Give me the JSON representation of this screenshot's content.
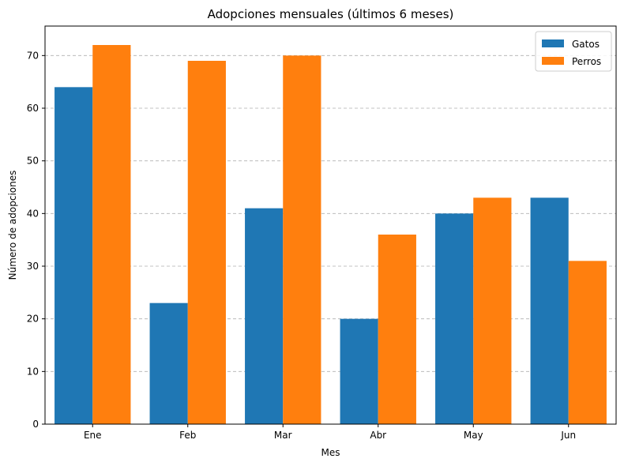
{
  "chart_data": {
    "type": "bar",
    "title": "Adopciones mensuales (últimos 6 meses)",
    "xlabel": "Mes",
    "ylabel": "Número de adopciones",
    "categories": [
      "Ene",
      "Feb",
      "Mar",
      "Abr",
      "May",
      "Jun"
    ],
    "series": [
      {
        "name": "Gatos",
        "values": [
          64,
          23,
          41,
          20,
          40,
          43
        ],
        "color": "#1f77b4"
      },
      {
        "name": "Perros",
        "values": [
          72,
          69,
          70,
          36,
          43,
          31
        ],
        "color": "#ff7f0e"
      }
    ],
    "ylim": [
      0,
      75.6
    ],
    "yticks": [
      0,
      10,
      20,
      30,
      40,
      50,
      60,
      70
    ],
    "grid": "y-dashed",
    "legend_position": "top-right"
  }
}
